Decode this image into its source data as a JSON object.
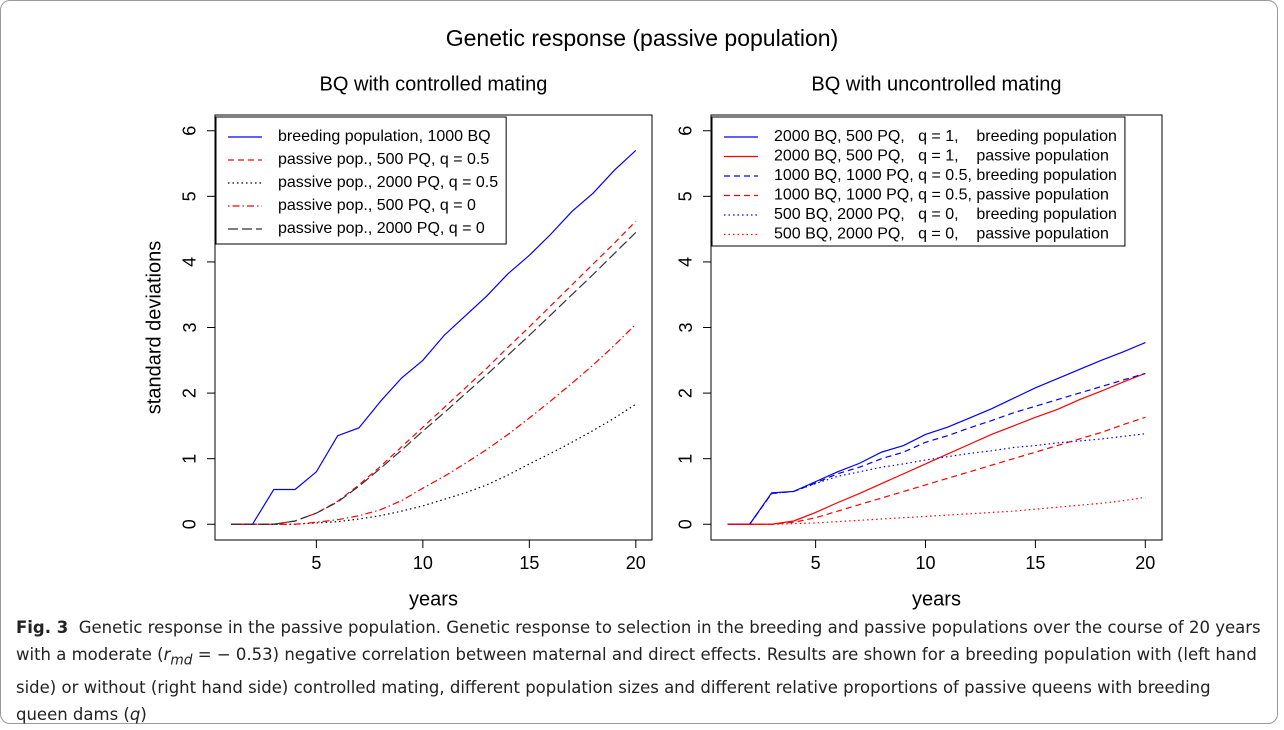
{
  "figure_title": "Genetic response (passive population)",
  "chart_data": [
    {
      "type": "line",
      "title": "BQ with controlled mating",
      "xlabel": "years",
      "ylabel": "standard deviations",
      "x": [
        1,
        2,
        3,
        4,
        5,
        6,
        7,
        8,
        9,
        10,
        11,
        12,
        13,
        14,
        15,
        16,
        17,
        18,
        19,
        20
      ],
      "xlim": [
        0.24,
        20.76
      ],
      "xticks": [
        5,
        10,
        15,
        20
      ],
      "ylim": [
        -0.24,
        6.24
      ],
      "yticks": [
        0,
        1,
        2,
        3,
        4,
        5,
        6
      ],
      "legend": "topleft",
      "series": [
        {
          "name": "breeding population, 1000 BQ",
          "color": "#0000ff",
          "dash": "solid",
          "values": [
            0,
            0,
            0.53,
            0.53,
            0.8,
            1.35,
            1.47,
            1.87,
            2.23,
            2.5,
            2.88,
            3.18,
            3.48,
            3.82,
            4.1,
            4.42,
            4.77,
            5.05,
            5.4,
            5.7
          ]
        },
        {
          "name": "passive pop., 500 PQ, q = 0.5",
          "color": "#ff0000",
          "dash": "dashed",
          "values": [
            0,
            0,
            0,
            0.05,
            0.17,
            0.35,
            0.6,
            0.88,
            1.18,
            1.48,
            1.78,
            2.08,
            2.38,
            2.7,
            3.01,
            3.33,
            3.65,
            3.97,
            4.29,
            4.62
          ]
        },
        {
          "name": "passive pop., 2000 PQ, q = 0.5",
          "color": "#000000",
          "dash": "dotted",
          "values": [
            0,
            0,
            0,
            0,
            0.02,
            0.04,
            0.08,
            0.13,
            0.2,
            0.28,
            0.38,
            0.48,
            0.6,
            0.75,
            0.92,
            1.08,
            1.25,
            1.43,
            1.62,
            1.83
          ]
        },
        {
          "name": "passive pop., 500 PQ, q = 0",
          "color": "#ff0000",
          "dash": "dotdash",
          "values": [
            0,
            0,
            0,
            0,
            0.03,
            0.07,
            0.13,
            0.22,
            0.36,
            0.55,
            0.73,
            0.93,
            1.14,
            1.37,
            1.62,
            1.88,
            2.15,
            2.43,
            2.73,
            3.05
          ]
        },
        {
          "name": "passive pop., 2000 PQ, q = 0",
          "color": "#333333",
          "dash": "longdash",
          "values": [
            0,
            0,
            0,
            0.05,
            0.17,
            0.34,
            0.58,
            0.85,
            1.13,
            1.42,
            1.7,
            1.99,
            2.28,
            2.58,
            2.88,
            3.19,
            3.5,
            3.81,
            4.13,
            4.45
          ]
        }
      ]
    },
    {
      "type": "line",
      "title": "BQ with uncontrolled mating",
      "xlabel": "years",
      "x": [
        1,
        2,
        3,
        4,
        5,
        6,
        7,
        8,
        9,
        10,
        11,
        12,
        13,
        14,
        15,
        16,
        17,
        18,
        19,
        20
      ],
      "xlim": [
        0.24,
        20.76
      ],
      "xticks": [
        5,
        10,
        15,
        20
      ],
      "ylim": [
        -0.24,
        6.24
      ],
      "yticks": [
        0,
        1,
        2,
        3,
        4,
        5,
        6
      ],
      "legend": "topleft",
      "series": [
        {
          "name": "2000 BQ, 500 PQ,   q = 1,    breeding population",
          "color": "#0000ff",
          "dash": "solid",
          "values": [
            0,
            0,
            0.48,
            0.5,
            0.65,
            0.8,
            0.93,
            1.1,
            1.2,
            1.37,
            1.48,
            1.62,
            1.76,
            1.92,
            2.08,
            2.22,
            2.36,
            2.5,
            2.63,
            2.77
          ]
        },
        {
          "name": "2000 BQ, 500 PQ,   q = 1,    passive population",
          "color": "#ff0000",
          "dash": "solid",
          "values": [
            0,
            0,
            0,
            0.05,
            0.18,
            0.33,
            0.47,
            0.62,
            0.77,
            0.92,
            1.07,
            1.22,
            1.37,
            1.5,
            1.63,
            1.75,
            1.9,
            2.03,
            2.17,
            2.3
          ]
        },
        {
          "name": "1000 BQ, 1000 PQ, q = 0.5, breeding population",
          "color": "#0000ff",
          "dash": "dashed",
          "values": [
            0,
            0,
            0.47,
            0.5,
            0.63,
            0.77,
            0.87,
            1.0,
            1.1,
            1.25,
            1.35,
            1.47,
            1.58,
            1.7,
            1.8,
            1.9,
            2.0,
            2.1,
            2.2,
            2.3
          ]
        },
        {
          "name": "1000 BQ, 1000 PQ, q = 0.5, passive population",
          "color": "#ff0000",
          "dash": "dashed",
          "values": [
            0,
            0,
            0,
            0.03,
            0.1,
            0.2,
            0.3,
            0.4,
            0.5,
            0.6,
            0.7,
            0.8,
            0.9,
            1.0,
            1.1,
            1.2,
            1.3,
            1.4,
            1.52,
            1.63
          ]
        },
        {
          "name": "500 BQ, 2000 PQ,   q = 0,    breeding population",
          "color": "#0000ff",
          "dash": "dotted",
          "values": [
            0,
            0,
            0.47,
            0.5,
            0.62,
            0.73,
            0.8,
            0.87,
            0.92,
            0.98,
            1.03,
            1.08,
            1.12,
            1.17,
            1.2,
            1.24,
            1.27,
            1.3,
            1.34,
            1.38
          ]
        },
        {
          "name": "500 BQ, 2000 PQ,   q = 0,    passive population",
          "color": "#ff0000",
          "dash": "dotted",
          "values": [
            0,
            0,
            0,
            0.01,
            0.02,
            0.04,
            0.06,
            0.08,
            0.1,
            0.12,
            0.14,
            0.16,
            0.18,
            0.2,
            0.23,
            0.26,
            0.29,
            0.32,
            0.36,
            0.41
          ]
        }
      ]
    }
  ],
  "caption": {
    "label": "Fig. 3",
    "parts": [
      "Genetic response in the passive population. Genetic response to selection in the breeding and passive populations over the course of 20 years with a moderate (",
      "r",
      "md",
      " = − 0.53) negative correlation between maternal and direct effects. Results are shown for a breeding population with (left hand side) or without (right hand side) controlled mating, different population sizes and different relative proportions of passive queens with breeding queen dams (",
      "q",
      ")"
    ]
  }
}
